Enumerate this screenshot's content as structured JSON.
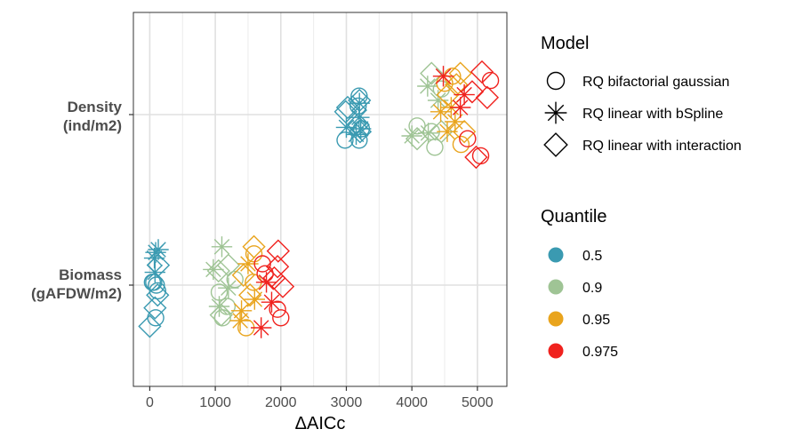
{
  "chart_data": {
    "type": "scatter",
    "title": "",
    "xlabel": "ΔAICc",
    "ylabel": "",
    "xlim": [
      -250,
      5450
    ],
    "x_ticks": [
      0,
      1000,
      2000,
      3000,
      4000,
      5000
    ],
    "categories": [
      "Biomass\n(gAFDW/m2)",
      "Density\n(ind/m2)"
    ],
    "grid": true,
    "legend_position": "right",
    "legends": {
      "shape": {
        "title": "Model",
        "items": [
          {
            "label": "RQ bifactorial gaussian",
            "shape": "circle"
          },
          {
            "label": "RQ linear with bSpline",
            "shape": "asterisk"
          },
          {
            "label": "RQ linear with interaction",
            "shape": "diamond"
          }
        ]
      },
      "color": {
        "title": "Quantile",
        "items": [
          {
            "label": "0.5",
            "color": "#3a9ab1"
          },
          {
            "label": "0.9",
            "color": "#9fc495"
          },
          {
            "label": "0.95",
            "color": "#e9a41d"
          },
          {
            "label": "0.975",
            "color": "#f0221e"
          }
        ]
      }
    },
    "points": [
      {
        "x": 3195,
        "cat": 1,
        "dy": 0.13,
        "shape": "circle",
        "q": "0.5"
      },
      {
        "x": 3180,
        "cat": 1,
        "dy": 0.06,
        "shape": "circle",
        "q": "0.5"
      },
      {
        "x": 3230,
        "cat": 1,
        "dy": -0.1,
        "shape": "circle",
        "q": "0.5"
      },
      {
        "x": 3195,
        "cat": 1,
        "dy": -0.18,
        "shape": "circle",
        "q": "0.5"
      },
      {
        "x": 2980,
        "cat": 1,
        "dy": -0.18,
        "shape": "circle",
        "q": "0.5"
      },
      {
        "x": 3195,
        "cat": 1,
        "dy": -0.02,
        "shape": "asterisk",
        "q": "0.5"
      },
      {
        "x": 3220,
        "cat": 1,
        "dy": -0.1,
        "shape": "asterisk",
        "q": "0.5"
      },
      {
        "x": 3150,
        "cat": 1,
        "dy": -0.14,
        "shape": "asterisk",
        "q": "0.5"
      },
      {
        "x": 3200,
        "cat": 1,
        "dy": 0.08,
        "shape": "asterisk",
        "q": "0.5"
      },
      {
        "x": 3000,
        "cat": 1,
        "dy": -0.09,
        "shape": "asterisk",
        "q": "0.5"
      },
      {
        "x": 2990,
        "cat": 1,
        "dy": 0.02,
        "shape": "diamond",
        "q": "0.5"
      },
      {
        "x": 3200,
        "cat": 1,
        "dy": 0.1,
        "shape": "diamond",
        "q": "0.5"
      },
      {
        "x": 3020,
        "cat": 1,
        "dy": 0.05,
        "shape": "diamond",
        "q": "0.5"
      },
      {
        "x": 3180,
        "cat": 1,
        "dy": -0.07,
        "shape": "diamond",
        "q": "0.5"
      },
      {
        "x": 3210,
        "cat": 1,
        "dy": -0.12,
        "shape": "diamond",
        "q": "0.5"
      },
      {
        "x": 4080,
        "cat": 1,
        "dy": -0.08,
        "shape": "circle",
        "q": "0.9"
      },
      {
        "x": 4450,
        "cat": 1,
        "dy": 0.18,
        "shape": "circle",
        "q": "0.9"
      },
      {
        "x": 4350,
        "cat": 1,
        "dy": -0.23,
        "shape": "circle",
        "q": "0.9"
      },
      {
        "x": 4300,
        "cat": 1,
        "dy": -0.12,
        "shape": "circle",
        "q": "0.9"
      },
      {
        "x": 4240,
        "cat": 1,
        "dy": 0.2,
        "shape": "asterisk",
        "q": "0.9"
      },
      {
        "x": 4000,
        "cat": 1,
        "dy": -0.15,
        "shape": "asterisk",
        "q": "0.9"
      },
      {
        "x": 4250,
        "cat": 1,
        "dy": -0.13,
        "shape": "asterisk",
        "q": "0.9"
      },
      {
        "x": 4400,
        "cat": 1,
        "dy": 0.1,
        "shape": "asterisk",
        "q": "0.9"
      },
      {
        "x": 4300,
        "cat": 1,
        "dy": 0.29,
        "shape": "diamond",
        "q": "0.9"
      },
      {
        "x": 4080,
        "cat": 1,
        "dy": -0.17,
        "shape": "diamond",
        "q": "0.9"
      },
      {
        "x": 4450,
        "cat": 1,
        "dy": -0.12,
        "shape": "diamond",
        "q": "0.9"
      },
      {
        "x": 4500,
        "cat": 1,
        "dy": 0.22,
        "shape": "circle",
        "q": "0.95"
      },
      {
        "x": 4750,
        "cat": 1,
        "dy": -0.21,
        "shape": "circle",
        "q": "0.95"
      },
      {
        "x": 4620,
        "cat": 1,
        "dy": 0.27,
        "shape": "circle",
        "q": "0.95"
      },
      {
        "x": 4440,
        "cat": 1,
        "dy": 0.02,
        "shape": "asterisk",
        "q": "0.95"
      },
      {
        "x": 4600,
        "cat": 1,
        "dy": 0.05,
        "shape": "asterisk",
        "q": "0.95"
      },
      {
        "x": 4540,
        "cat": 1,
        "dy": -0.12,
        "shape": "asterisk",
        "q": "0.95"
      },
      {
        "x": 4660,
        "cat": 1,
        "dy": -0.05,
        "shape": "asterisk",
        "q": "0.95"
      },
      {
        "x": 4680,
        "cat": 1,
        "dy": 0.21,
        "shape": "diamond",
        "q": "0.95"
      },
      {
        "x": 4740,
        "cat": 1,
        "dy": 0.29,
        "shape": "diamond",
        "q": "0.95"
      },
      {
        "x": 4550,
        "cat": 1,
        "dy": 0.14,
        "shape": "diamond",
        "q": "0.95"
      },
      {
        "x": 4800,
        "cat": 1,
        "dy": -0.12,
        "shape": "diamond",
        "q": "0.95"
      },
      {
        "x": 5200,
        "cat": 1,
        "dy": 0.24,
        "shape": "circle",
        "q": "0.975"
      },
      {
        "x": 4850,
        "cat": 1,
        "dy": -0.17,
        "shape": "circle",
        "q": "0.975"
      },
      {
        "x": 5050,
        "cat": 1,
        "dy": -0.29,
        "shape": "circle",
        "q": "0.975"
      },
      {
        "x": 4480,
        "cat": 1,
        "dy": 0.27,
        "shape": "asterisk",
        "q": "0.975"
      },
      {
        "x": 4800,
        "cat": 1,
        "dy": 0.14,
        "shape": "asterisk",
        "q": "0.975"
      },
      {
        "x": 4740,
        "cat": 1,
        "dy": 0.05,
        "shape": "asterisk",
        "q": "0.975"
      },
      {
        "x": 5070,
        "cat": 1,
        "dy": 0.3,
        "shape": "diamond",
        "q": "0.975"
      },
      {
        "x": 5150,
        "cat": 1,
        "dy": 0.12,
        "shape": "diamond",
        "q": "0.975"
      },
      {
        "x": 4920,
        "cat": 1,
        "dy": 0.16,
        "shape": "diamond",
        "q": "0.975"
      },
      {
        "x": 4980,
        "cat": 1,
        "dy": -0.3,
        "shape": "diamond",
        "q": "0.975"
      },
      {
        "x": 60,
        "cat": 0,
        "dy": 0.02,
        "shape": "circle",
        "q": "0.5"
      },
      {
        "x": 100,
        "cat": 0,
        "dy": 0.0,
        "shape": "circle",
        "q": "0.5"
      },
      {
        "x": 120,
        "cat": 0,
        "dy": -0.04,
        "shape": "circle",
        "q": "0.5"
      },
      {
        "x": 90,
        "cat": 0,
        "dy": -0.23,
        "shape": "circle",
        "q": "0.5"
      },
      {
        "x": 40,
        "cat": 0,
        "dy": 0.02,
        "shape": "circle",
        "q": "0.5"
      },
      {
        "x": 90,
        "cat": 0,
        "dy": 0.23,
        "shape": "asterisk",
        "q": "0.5"
      },
      {
        "x": 130,
        "cat": 0,
        "dy": 0.25,
        "shape": "asterisk",
        "q": "0.5"
      },
      {
        "x": 70,
        "cat": 0,
        "dy": 0.19,
        "shape": "asterisk",
        "q": "0.5"
      },
      {
        "x": 80,
        "cat": 0,
        "dy": 0.09,
        "shape": "asterisk",
        "q": "0.5"
      },
      {
        "x": 130,
        "cat": 0,
        "dy": 0.14,
        "shape": "diamond",
        "q": "0.5"
      },
      {
        "x": 120,
        "cat": 0,
        "dy": -0.07,
        "shape": "diamond",
        "q": "0.5"
      },
      {
        "x": 80,
        "cat": 0,
        "dy": -0.16,
        "shape": "diamond",
        "q": "0.5"
      },
      {
        "x": 0,
        "cat": 0,
        "dy": -0.29,
        "shape": "diamond",
        "q": "0.5"
      },
      {
        "x": 1060,
        "cat": 0,
        "dy": -0.05,
        "shape": "circle",
        "q": "0.9"
      },
      {
        "x": 1180,
        "cat": 0,
        "dy": -0.15,
        "shape": "circle",
        "q": "0.9"
      },
      {
        "x": 1110,
        "cat": 0,
        "dy": -0.23,
        "shape": "circle",
        "q": "0.9"
      },
      {
        "x": 1300,
        "cat": 0,
        "dy": 0.04,
        "shape": "circle",
        "q": "0.9"
      },
      {
        "x": 1100,
        "cat": 0,
        "dy": 0.27,
        "shape": "asterisk",
        "q": "0.9"
      },
      {
        "x": 970,
        "cat": 0,
        "dy": 0.11,
        "shape": "asterisk",
        "q": "0.9"
      },
      {
        "x": 1060,
        "cat": 0,
        "dy": -0.15,
        "shape": "asterisk",
        "q": "0.9"
      },
      {
        "x": 1200,
        "cat": 0,
        "dy": -0.02,
        "shape": "asterisk",
        "q": "0.9"
      },
      {
        "x": 1200,
        "cat": 0,
        "dy": 0.14,
        "shape": "diamond",
        "q": "0.9"
      },
      {
        "x": 1050,
        "cat": 0,
        "dy": 0.1,
        "shape": "diamond",
        "q": "0.9"
      },
      {
        "x": 1090,
        "cat": 0,
        "dy": -0.21,
        "shape": "diamond",
        "q": "0.9"
      },
      {
        "x": 1590,
        "cat": 0,
        "dy": 0.22,
        "shape": "circle",
        "q": "0.95"
      },
      {
        "x": 1580,
        "cat": 0,
        "dy": 0.02,
        "shape": "circle",
        "q": "0.95"
      },
      {
        "x": 1470,
        "cat": 0,
        "dy": -0.3,
        "shape": "circle",
        "q": "0.95"
      },
      {
        "x": 1500,
        "cat": 0,
        "dy": 0.15,
        "shape": "asterisk",
        "q": "0.95"
      },
      {
        "x": 1400,
        "cat": 0,
        "dy": -0.18,
        "shape": "asterisk",
        "q": "0.95"
      },
      {
        "x": 1600,
        "cat": 0,
        "dy": -0.1,
        "shape": "asterisk",
        "q": "0.95"
      },
      {
        "x": 1380,
        "cat": 0,
        "dy": -0.25,
        "shape": "asterisk",
        "q": "0.95"
      },
      {
        "x": 1590,
        "cat": 0,
        "dy": 0.27,
        "shape": "diamond",
        "q": "0.95"
      },
      {
        "x": 1430,
        "cat": 0,
        "dy": 0.07,
        "shape": "diamond",
        "q": "0.95"
      },
      {
        "x": 1530,
        "cat": 0,
        "dy": -0.07,
        "shape": "diamond",
        "q": "0.95"
      },
      {
        "x": 1760,
        "cat": 0,
        "dy": 0.08,
        "shape": "circle",
        "q": "0.975"
      },
      {
        "x": 1950,
        "cat": 0,
        "dy": -0.17,
        "shape": "circle",
        "q": "0.975"
      },
      {
        "x": 2000,
        "cat": 0,
        "dy": -0.23,
        "shape": "circle",
        "q": "0.975"
      },
      {
        "x": 1720,
        "cat": 0,
        "dy": 0.15,
        "shape": "circle",
        "q": "0.975"
      },
      {
        "x": 1780,
        "cat": 0,
        "dy": 0.02,
        "shape": "asterisk",
        "q": "0.975"
      },
      {
        "x": 1700,
        "cat": 0,
        "dy": -0.3,
        "shape": "asterisk",
        "q": "0.975"
      },
      {
        "x": 1860,
        "cat": 0,
        "dy": -0.12,
        "shape": "asterisk",
        "q": "0.975"
      },
      {
        "x": 1960,
        "cat": 0,
        "dy": 0.24,
        "shape": "diamond",
        "q": "0.975"
      },
      {
        "x": 1950,
        "cat": 0,
        "dy": 0.13,
        "shape": "diamond",
        "q": "0.975"
      },
      {
        "x": 2030,
        "cat": 0,
        "dy": -0.01,
        "shape": "diamond",
        "q": "0.975"
      },
      {
        "x": 1900,
        "cat": 0,
        "dy": 0.05,
        "shape": "diamond",
        "q": "0.975"
      }
    ]
  }
}
